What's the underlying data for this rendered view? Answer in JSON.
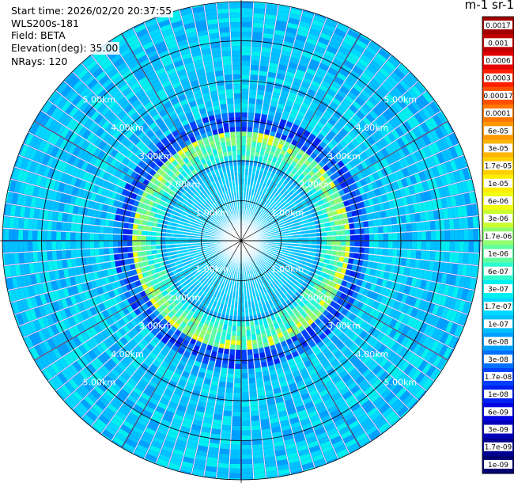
{
  "header": {
    "start_time": "Start time: 2026/02/20 20:37:55",
    "device": "WLS200s-181",
    "field": "Field: BETA",
    "elevation": "Elevation(deg): 35.00",
    "nrays": "NRays: 120"
  },
  "units_label": "m-1 sr-1",
  "range_rings": {
    "labels": [
      "1.00km",
      "2.00km",
      "3.00km",
      "4.00km",
      "5.00km"
    ]
  },
  "colorbar": {
    "labels": [
      "0.0017",
      "0.001",
      "0.0006",
      "0.0003",
      "0.00017",
      "0.0001",
      "6e-05",
      "3e-05",
      "1.7e-05",
      "1e-05",
      "6e-06",
      "3e-06",
      "1.7e-06",
      "1e-06",
      "6e-07",
      "3e-07",
      "1.7e-07",
      "1e-07",
      "6e-08",
      "3e-08",
      "1.7e-08",
      "1e-08",
      "6e-09",
      "3e-09",
      "1.7e-09",
      "1e-09"
    ],
    "colors": [
      "#a00000",
      "#c00000",
      "#e40000",
      "#ff2000",
      "#ff5000",
      "#ff7800",
      "#ff9800",
      "#ffb400",
      "#ffd000",
      "#ffee00",
      "#f0ff10",
      "#c8ff30",
      "#90ff70",
      "#60ffa0",
      "#30ffd0",
      "#00f0f0",
      "#00d8ff",
      "#00c0ff",
      "#00a0ff",
      "#0070ff",
      "#0040ff",
      "#0020f0",
      "#0000e0",
      "#0000b8",
      "#000090",
      "#000070"
    ]
  }
}
